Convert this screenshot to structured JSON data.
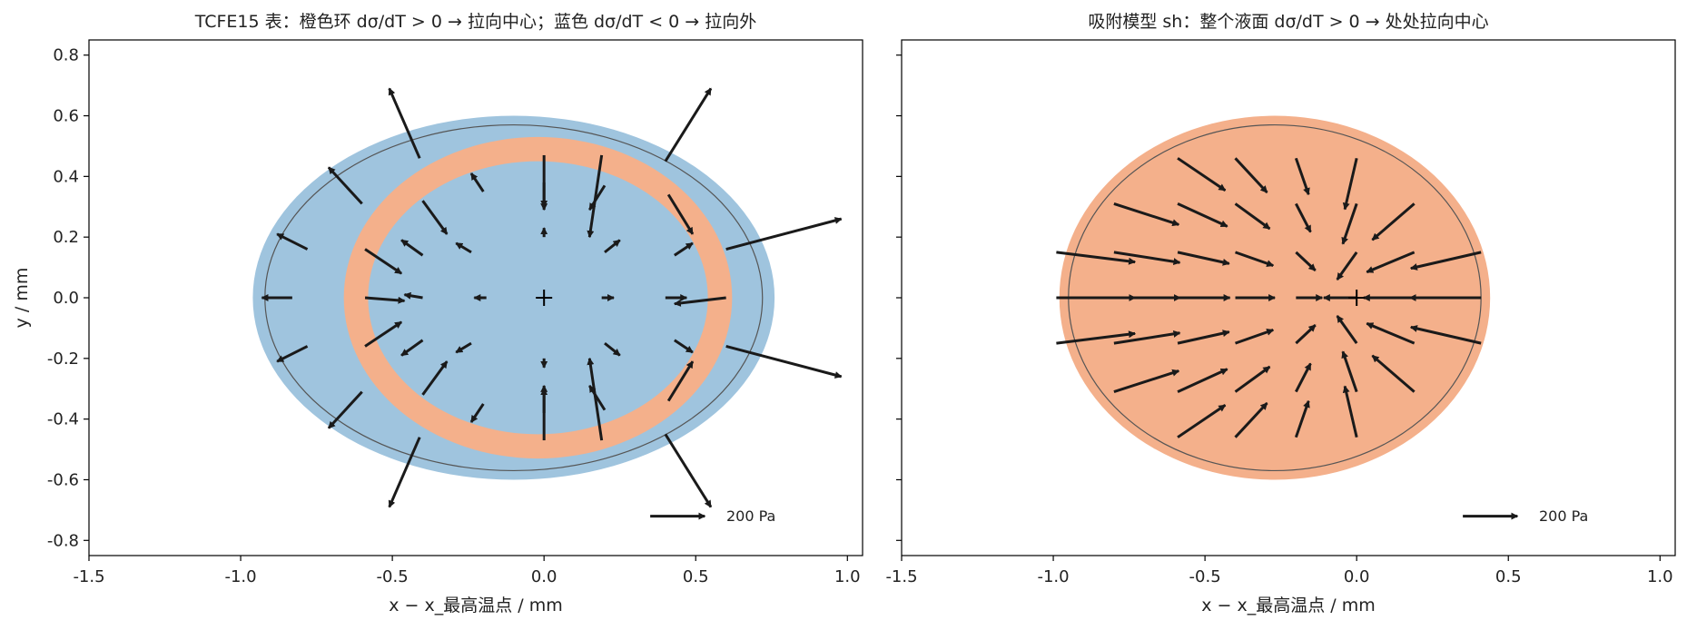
{
  "chart_data": [
    {
      "type": "quiver",
      "title": "TCFE15 表：橙色环 dσ/dT > 0 → 拉向中心；蓝色 dσ/dT < 0 → 拉向外",
      "xlabel": "x − x_最高温点 / mm",
      "ylabel": "y / mm",
      "xlim": [
        -1.5,
        1.05
      ],
      "ylim": [
        -0.85,
        0.85
      ],
      "xticks": [
        -1.5,
        -1.0,
        -0.5,
        0.0,
        0.5,
        1.0
      ],
      "xtick_labels": [
        "-1.5",
        "-1.0",
        "-0.5",
        "0.0",
        "0.5",
        "1.0"
      ],
      "yticks": [
        0.8,
        0.6,
        0.4,
        0.2,
        0.0,
        -0.2,
        -0.4,
        -0.6,
        -0.8
      ],
      "ytick_labels": [
        "0.8",
        "0.6",
        "0.4",
        "0.2",
        "0.0",
        "-0.2",
        "-0.4",
        "-0.6",
        "-0.8"
      ],
      "region_colors": {
        "positive": "#f4b08b",
        "negative": "#9fc4de"
      },
      "regions": {
        "outer": {
          "cx": -0.1,
          "cy": 0.0,
          "rx": 0.86,
          "ry": 0.6,
          "color": "negative"
        },
        "ring": {
          "cx": -0.02,
          "cy": 0.0,
          "rx": 0.64,
          "ry": 0.53,
          "color": "positive"
        },
        "inner": {
          "cx": -0.02,
          "cy": 0.0,
          "rx": 0.56,
          "ry": 0.45,
          "color": "negative"
        }
      },
      "melt_pool_outline": {
        "cx": -0.1,
        "cy": 0.0,
        "rx": 0.82,
        "ry": 0.57
      },
      "hotspot": {
        "x": 0.0,
        "y": 0.0,
        "marker": "+"
      },
      "vectors": [
        {
          "x": -0.83,
          "y": 0.0,
          "u": -0.1,
          "v": 0.0
        },
        {
          "x": -0.59,
          "y": 0.0,
          "u": 0.13,
          "v": -0.01
        },
        {
          "x": -0.4,
          "y": 0.0,
          "u": -0.06,
          "v": 0.01
        },
        {
          "x": -0.19,
          "y": 0.0,
          "u": -0.04,
          "v": 0.0
        },
        {
          "x": 0.19,
          "y": 0.0,
          "u": 0.04,
          "v": 0.0
        },
        {
          "x": 0.4,
          "y": 0.0,
          "u": 0.07,
          "v": 0.0
        },
        {
          "x": 0.6,
          "y": 0.0,
          "u": -0.17,
          "v": -0.02
        },
        {
          "x": -0.59,
          "y": 0.16,
          "u": 0.12,
          "v": -0.08
        },
        {
          "x": -0.4,
          "y": 0.14,
          "u": -0.07,
          "v": 0.05
        },
        {
          "x": -0.24,
          "y": 0.15,
          "u": -0.05,
          "v": 0.03
        },
        {
          "x": 0.2,
          "y": 0.15,
          "u": 0.05,
          "v": 0.04
        },
        {
          "x": 0.43,
          "y": 0.14,
          "u": 0.06,
          "v": 0.04
        },
        {
          "x": -0.59,
          "y": -0.16,
          "u": 0.12,
          "v": 0.08
        },
        {
          "x": -0.4,
          "y": -0.14,
          "u": -0.07,
          "v": -0.05
        },
        {
          "x": -0.24,
          "y": -0.15,
          "u": -0.05,
          "v": -0.03
        },
        {
          "x": 0.2,
          "y": -0.15,
          "u": 0.05,
          "v": -0.04
        },
        {
          "x": 0.43,
          "y": -0.14,
          "u": 0.06,
          "v": -0.04
        },
        {
          "x": -0.78,
          "y": 0.16,
          "u": -0.1,
          "v": 0.05
        },
        {
          "x": -0.78,
          "y": -0.16,
          "u": -0.1,
          "v": -0.05
        },
        {
          "x": -0.6,
          "y": 0.31,
          "u": -0.11,
          "v": 0.12
        },
        {
          "x": -0.6,
          "y": -0.31,
          "u": -0.11,
          "v": -0.12
        },
        {
          "x": -0.4,
          "y": 0.32,
          "u": 0.08,
          "v": -0.11
        },
        {
          "x": -0.4,
          "y": -0.32,
          "u": 0.08,
          "v": 0.11
        },
        {
          "x": -0.2,
          "y": 0.35,
          "u": -0.04,
          "v": 0.06
        },
        {
          "x": -0.2,
          "y": -0.35,
          "u": -0.04,
          "v": -0.06
        },
        {
          "x": 0.0,
          "y": 0.38,
          "u": 0.0,
          "v": -0.09
        },
        {
          "x": 0.0,
          "y": -0.38,
          "u": 0.0,
          "v": 0.09
        },
        {
          "x": 0.0,
          "y": 0.47,
          "u": 0.0,
          "v": -0.17
        },
        {
          "x": 0.0,
          "y": -0.47,
          "u": 0.0,
          "v": 0.17
        },
        {
          "x": 0.2,
          "y": 0.37,
          "u": -0.05,
          "v": -0.08
        },
        {
          "x": 0.2,
          "y": -0.37,
          "u": -0.05,
          "v": 0.08
        },
        {
          "x": 0.0,
          "y": 0.2,
          "u": 0.0,
          "v": 0.03
        },
        {
          "x": 0.0,
          "y": -0.2,
          "u": 0.0,
          "v": -0.03
        },
        {
          "x": 0.19,
          "y": 0.47,
          "u": -0.04,
          "v": -0.27
        },
        {
          "x": 0.19,
          "y": -0.47,
          "u": -0.04,
          "v": 0.27
        },
        {
          "x": 0.41,
          "y": 0.34,
          "u": 0.08,
          "v": -0.13
        },
        {
          "x": 0.41,
          "y": -0.34,
          "u": 0.08,
          "v": 0.13
        },
        {
          "x": -0.41,
          "y": 0.46,
          "u": -0.1,
          "v": 0.23
        },
        {
          "x": -0.41,
          "y": -0.46,
          "u": -0.1,
          "v": -0.23
        },
        {
          "x": 0.4,
          "y": 0.45,
          "u": 0.15,
          "v": 0.24
        },
        {
          "x": 0.4,
          "y": -0.45,
          "u": 0.15,
          "v": -0.24
        },
        {
          "x": 0.6,
          "y": 0.16,
          "u": 0.38,
          "v": 0.1
        },
        {
          "x": 0.6,
          "y": -0.16,
          "u": 0.38,
          "v": -0.1
        }
      ],
      "key": {
        "u": 0.18,
        "label": "200 Pa"
      }
    },
    {
      "type": "quiver",
      "title": "吸附模型 sh：整个液面 dσ/dT > 0 → 处处拉向中心",
      "xlabel": "x − x_最高温点 / mm",
      "ylabel": "",
      "xlim": [
        -1.5,
        1.05
      ],
      "ylim": [
        -0.85,
        0.85
      ],
      "xticks": [
        -1.5,
        -1.0,
        -0.5,
        0.0,
        0.5,
        1.0
      ],
      "xtick_labels": [
        "-1.5",
        "-1.0",
        "-0.5",
        "0.0",
        "0.5",
        "1.0"
      ],
      "region_colors": {
        "positive": "#f4b08b"
      },
      "regions": {
        "outer": {
          "cx": -0.27,
          "cy": 0.0,
          "rx": 0.71,
          "ry": 0.6,
          "color": "positive"
        }
      },
      "melt_pool_outline": {
        "cx": -0.27,
        "cy": 0.0,
        "rx": 0.68,
        "ry": 0.57
      },
      "hotspot": {
        "x": 0.0,
        "y": 0.0,
        "marker": "+"
      },
      "vectors_grid": {
        "rows": [
          {
            "y": 0.46,
            "xs": [
              -0.59,
              -0.4,
              -0.2,
              0.0
            ]
          },
          {
            "y": 0.31,
            "xs": [
              -0.8,
              -0.59,
              -0.4,
              -0.2,
              0.0,
              0.19
            ]
          },
          {
            "y": 0.15,
            "xs": [
              -0.99,
              -0.8,
              -0.59,
              -0.4,
              -0.2,
              0.0,
              0.19,
              0.41
            ]
          },
          {
            "y": 0.0,
            "xs": [
              -0.99,
              -0.8,
              -0.59,
              -0.4,
              -0.2,
              0.0,
              0.19,
              0.41
            ]
          },
          {
            "y": -0.15,
            "xs": [
              -0.99,
              -0.8,
              -0.59,
              -0.4,
              -0.2,
              0.0,
              0.19,
              0.41
            ]
          },
          {
            "y": -0.31,
            "xs": [
              -0.8,
              -0.59,
              -0.4,
              -0.2,
              0.0,
              0.19
            ]
          },
          {
            "y": -0.46,
            "xs": [
              -0.59,
              -0.4,
              -0.2,
              0.0
            ]
          }
        ],
        "direction": "toward (-0.08, 0.0)"
      },
      "key": {
        "u": 0.18,
        "label": "200 Pa"
      }
    }
  ]
}
